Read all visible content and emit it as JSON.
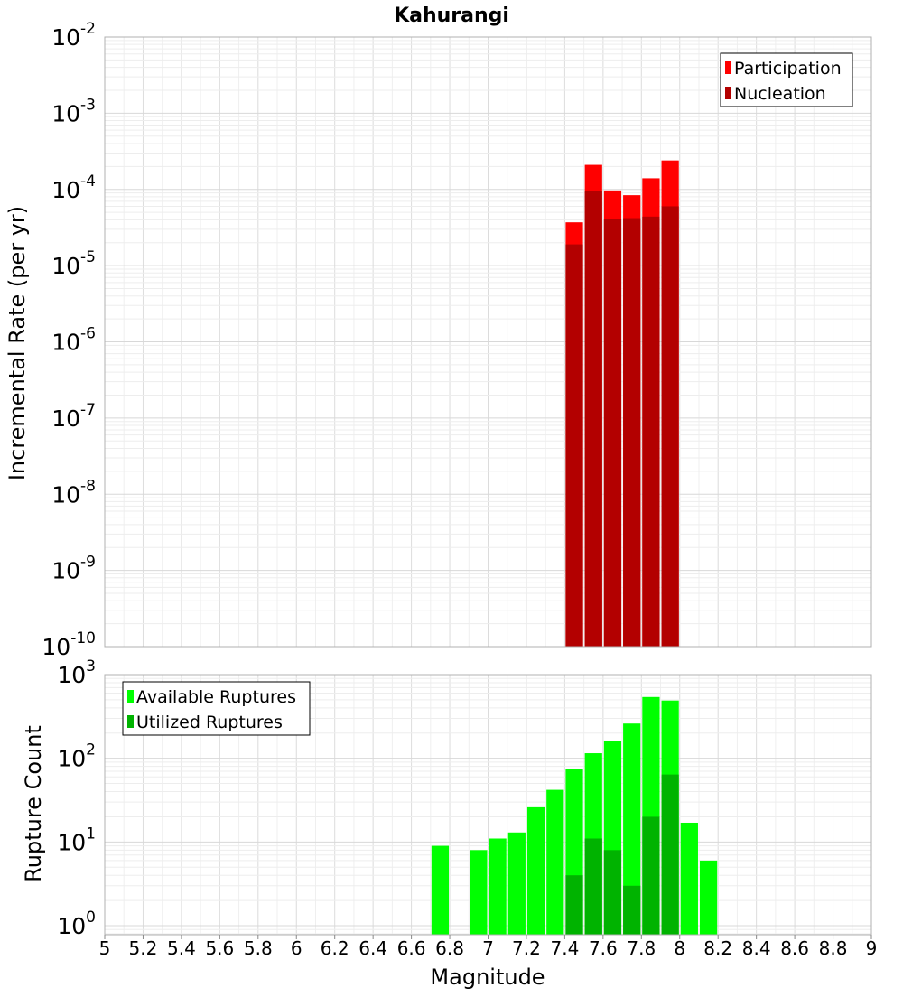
{
  "chart_data": [
    {
      "type": "bar",
      "title": "Kahurangi",
      "ylabel": "Incremental Rate (per yr)",
      "xlabel": "",
      "xlim": [
        5,
        9
      ],
      "ylim": [
        1e-10,
        0.01
      ],
      "yscale": "log",
      "grid": true,
      "legend_position": "top-right",
      "bin_width": 0.1,
      "x": [
        7.45,
        7.55,
        7.65,
        7.75,
        7.85,
        7.95
      ],
      "series": [
        {
          "name": "Participation",
          "color": "#ff0000",
          "values": [
            3.7e-05,
            0.00021,
            9.7e-05,
            8.4e-05,
            0.00014,
            0.00024
          ]
        },
        {
          "name": "Nucleation",
          "color": "#b30000",
          "values": [
            1.9e-05,
            9.6e-05,
            4.1e-05,
            4.2e-05,
            4.4e-05,
            6e-05
          ]
        }
      ],
      "y_tick_labels": [
        {
          "base": "10",
          "exp": "-10"
        },
        {
          "base": "10",
          "exp": "-9"
        },
        {
          "base": "10",
          "exp": "-8"
        },
        {
          "base": "10",
          "exp": "-7"
        },
        {
          "base": "10",
          "exp": "-6"
        },
        {
          "base": "10",
          "exp": "-5"
        },
        {
          "base": "10",
          "exp": "-4"
        },
        {
          "base": "10",
          "exp": "-3"
        },
        {
          "base": "10",
          "exp": "-2"
        }
      ]
    },
    {
      "type": "bar",
      "title": "",
      "ylabel": "Rupture Count",
      "xlabel": "Magnitude",
      "xlim": [
        5,
        9
      ],
      "ylim": [
        0.78,
        1000
      ],
      "yscale": "log",
      "grid": true,
      "legend_position": "top-left",
      "bin_width": 0.1,
      "series": [
        {
          "name": "Available Ruptures",
          "color": "#00ff00",
          "x": [
            6.75,
            6.95,
            7.05,
            7.15,
            7.25,
            7.35,
            7.45,
            7.55,
            7.65,
            7.75,
            7.85,
            7.95,
            8.05,
            8.15
          ],
          "values": [
            9,
            8,
            11,
            13,
            26,
            42,
            74,
            115,
            160,
            260,
            540,
            490,
            17,
            6
          ]
        },
        {
          "name": "Utilized Ruptures",
          "color": "#00b300",
          "x": [
            7.45,
            7.55,
            7.65,
            7.75,
            7.85,
            7.95
          ],
          "values": [
            4,
            11,
            8,
            3,
            20,
            64
          ]
        }
      ],
      "y_tick_labels": [
        {
          "base": "10",
          "exp": "0"
        },
        {
          "base": "10",
          "exp": "1"
        },
        {
          "base": "10",
          "exp": "2"
        },
        {
          "base": "10",
          "exp": "3"
        }
      ],
      "x_tick_labels": [
        "5",
        "5.2",
        "5.4",
        "5.6",
        "5.8",
        "6",
        "6.2",
        "6.4",
        "6.6",
        "6.8",
        "7",
        "7.2",
        "7.4",
        "7.6",
        "7.8",
        "8",
        "8.2",
        "8.4",
        "8.6",
        "8.8",
        "9"
      ]
    }
  ]
}
